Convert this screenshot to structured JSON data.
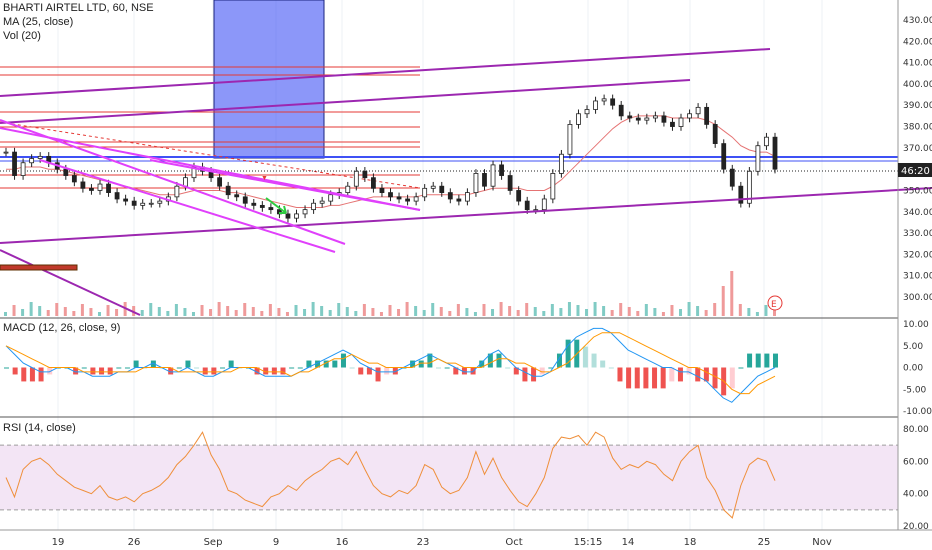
{
  "header": {
    "symbol_line": "BHARTI AIRTEL LTD, 60, NSE",
    "ma_label": "MA (25, close)",
    "vol_label": "Vol (20)",
    "macd_label": "MACD (12, 26, close, 9)",
    "rsi_label": "RSI (14, close)"
  },
  "price_axis": {
    "ticks": [
      "430.00",
      "420.00",
      "410.00",
      "400.00",
      "390.00",
      "380.00",
      "370.00",
      "360.00",
      "350.00",
      "340.00",
      "330.00",
      "320.00",
      "310.00",
      "300.00"
    ],
    "countdown_badge": "46:20",
    "event_badge": "E"
  },
  "macd_axis": {
    "ticks": [
      "10.00",
      "5.00",
      "0.00",
      "-5.00",
      "-10.00"
    ]
  },
  "rsi_axis": {
    "ticks": [
      "80.00",
      "60.00",
      "40.00",
      "20.00"
    ]
  },
  "time_axis": {
    "labels": [
      "19",
      "26",
      "Sep",
      "9",
      "16",
      "23",
      "Oct",
      "15:15",
      "14",
      "18",
      "25",
      "Nov"
    ]
  },
  "colors": {
    "up": "#26a69a",
    "down": "#ef5350",
    "candle": "#222222",
    "ma": "#e57373",
    "trend_purple": "#9c27b0",
    "trend_magenta": "#e040fb",
    "hline_red": "#e53935",
    "zone_blue": "#3f51f5",
    "macd_line": "#2196f3",
    "signal_line": "#ff9800",
    "rsi_line": "#ef8f3b",
    "rsi_band": "#f3e5f5"
  },
  "chart_data": [
    {
      "type": "line",
      "title": "BHARTI AIRTEL LTD, 60, NSE",
      "note_series": "hourly candlestick price with MA(25); values approximated",
      "ylim": [
        295,
        435
      ],
      "series": [
        {
          "name": "Price (close)",
          "values": [
            368,
            357,
            363,
            365,
            366,
            363,
            360,
            357,
            354,
            351,
            350,
            353,
            349,
            346,
            345,
            343,
            344,
            344,
            345,
            347,
            352,
            356,
            361,
            359,
            356,
            352,
            348,
            347,
            344,
            343,
            342,
            341,
            339,
            337,
            339,
            341,
            344,
            345,
            348,
            349,
            352,
            359,
            356,
            351,
            349,
            347,
            346,
            345,
            347,
            351,
            352,
            349,
            346,
            345,
            349,
            358,
            352,
            362,
            357,
            350,
            345,
            341,
            341,
            346,
            358,
            367,
            381,
            386,
            388,
            392,
            393,
            390,
            385,
            384,
            383,
            384,
            385,
            382,
            380,
            384,
            386,
            389,
            381,
            372,
            360,
            352,
            344,
            359,
            371,
            375,
            360
          ]
        },
        {
          "name": "MA (25, close)",
          "values": [
            360,
            360,
            361,
            361,
            361,
            360,
            360,
            359,
            358,
            357,
            356,
            355,
            354,
            353,
            352,
            351,
            350,
            349,
            348,
            348,
            348,
            349,
            350,
            350,
            350,
            350,
            349,
            349,
            348,
            347,
            346,
            345,
            344,
            343,
            342,
            342,
            342,
            342,
            343,
            343,
            344,
            345,
            346,
            347,
            347,
            347,
            347,
            347,
            347,
            348,
            348,
            348,
            348,
            348,
            348,
            349,
            350,
            351,
            351,
            351,
            351,
            350,
            350,
            350,
            352,
            355,
            359,
            363,
            367,
            371,
            375,
            379,
            382,
            384,
            385,
            385,
            385,
            385,
            384,
            384,
            384,
            384,
            383,
            381,
            378,
            375,
            371,
            369,
            368,
            368,
            366
          ]
        }
      ],
      "volume_note": "histogram bars, spike near 25"
    },
    {
      "type": "line",
      "title": "MACD (12, 26, close, 9)",
      "ylim": [
        -11,
        11
      ],
      "series": [
        {
          "name": "MACD",
          "values": [
            5,
            3,
            1,
            0,
            -1,
            -1,
            0,
            0,
            -1,
            -1,
            -2,
            -2,
            -2,
            -1,
            -1,
            0,
            0,
            1,
            0,
            -1,
            -1,
            0,
            -1,
            -2,
            -2,
            -1,
            0,
            0,
            0,
            -1,
            -2,
            -2,
            -2,
            -2,
            -1,
            0,
            1,
            2,
            3,
            4,
            3,
            1,
            0,
            -1,
            -1,
            -1,
            0,
            1,
            2,
            3,
            2,
            1,
            0,
            -1,
            -1,
            1,
            3,
            4,
            2,
            0,
            -1,
            -2,
            -2,
            -1,
            2,
            5,
            7,
            8,
            9,
            9,
            8,
            6,
            4,
            3,
            2,
            1,
            0,
            0,
            -1,
            -1,
            -2,
            -3,
            -5,
            -7,
            -8,
            -6,
            -4,
            -2,
            -1,
            0
          ]
        },
        {
          "name": "Signal",
          "values": [
            5,
            4,
            3,
            2,
            1,
            0,
            0,
            0,
            0,
            -1,
            -1,
            -1,
            -1,
            -1,
            -1,
            -1,
            0,
            0,
            0,
            0,
            -1,
            -1,
            -1,
            -1,
            -1,
            -1,
            -1,
            0,
            0,
            0,
            -1,
            -1,
            -1,
            -2,
            -1,
            -1,
            0,
            1,
            2,
            2,
            3,
            2,
            1,
            1,
            0,
            0,
            0,
            0,
            1,
            1,
            2,
            1,
            1,
            0,
            0,
            0,
            1,
            2,
            2,
            1,
            1,
            0,
            -1,
            -1,
            0,
            1,
            3,
            5,
            7,
            8,
            8,
            8,
            7,
            6,
            5,
            4,
            3,
            2,
            1,
            0,
            0,
            -1,
            -2,
            -3,
            -5,
            -6,
            -6,
            -4,
            -3,
            -2
          ]
        }
      ],
      "histogram_colors": [
        "#26a69a",
        "#b2dfdb",
        "#ef5350",
        "#ffcdd2"
      ]
    },
    {
      "type": "line",
      "title": "RSI (14, close)",
      "ylim": [
        15,
        85
      ],
      "bands": [
        70,
        30
      ],
      "series": [
        {
          "name": "RSI",
          "values": [
            50,
            38,
            55,
            60,
            62,
            58,
            52,
            48,
            44,
            42,
            40,
            45,
            38,
            36,
            38,
            35,
            40,
            42,
            45,
            50,
            58,
            63,
            70,
            78,
            64,
            55,
            42,
            40,
            36,
            34,
            32,
            38,
            40,
            45,
            42,
            48,
            52,
            55,
            60,
            62,
            58,
            66,
            55,
            45,
            40,
            38,
            42,
            40,
            45,
            58,
            55,
            44,
            40,
            42,
            50,
            66,
            52,
            62,
            50,
            42,
            35,
            32,
            40,
            50,
            68,
            75,
            74,
            76,
            70,
            78,
            75,
            62,
            55,
            58,
            56,
            60,
            58,
            52,
            48,
            60,
            66,
            70,
            50,
            42,
            30,
            25,
            45,
            58,
            62,
            60,
            48
          ]
        }
      ]
    }
  ]
}
